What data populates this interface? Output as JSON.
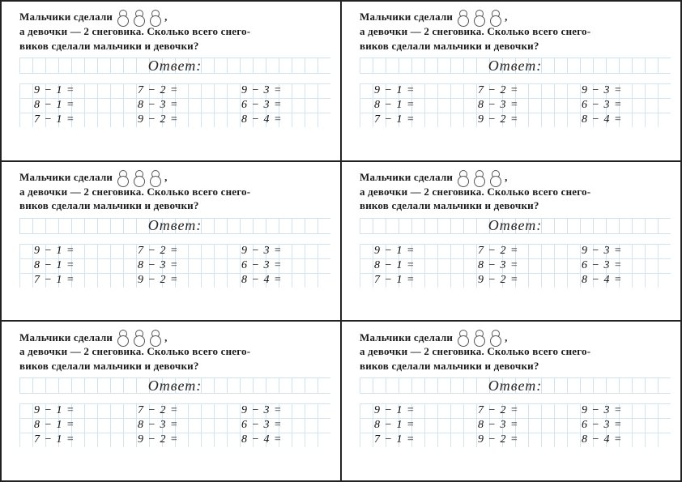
{
  "problem": {
    "line1_prefix": "Мальчики сделали",
    "line1_suffix": ",",
    "line2": "а девочки — 2 снеговика. Сколько всего снего-",
    "line3": "виков сделали мальчики и девочки?",
    "snowman_count": 3
  },
  "answer_label": "Ответ:",
  "equations": {
    "columns": [
      [
        "9 − 1 =",
        "8 − 1 =",
        "7 − 1 ="
      ],
      [
        "7 − 2 =",
        "8 − 3 =",
        "9 − 2 ="
      ],
      [
        "9 − 3 =",
        "6 − 3 =",
        "8 − 4 ="
      ]
    ]
  },
  "layout": {
    "cards_rows": 3,
    "cards_cols": 2,
    "grid_color": "#cfe0ee",
    "border_color": "#222222",
    "text_color": "#1a1a1a"
  }
}
